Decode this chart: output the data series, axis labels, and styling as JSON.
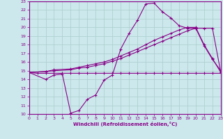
{
  "bg_color": "#cce8ec",
  "grid_color": "#aacccc",
  "line_color": "#880088",
  "xlim": [
    0,
    23
  ],
  "ylim": [
    10,
    23
  ],
  "xticks": [
    0,
    1,
    2,
    3,
    4,
    5,
    6,
    7,
    8,
    9,
    10,
    11,
    12,
    13,
    14,
    15,
    16,
    17,
    18,
    19,
    20,
    21,
    22,
    23
  ],
  "yticks": [
    10,
    11,
    12,
    13,
    14,
    15,
    16,
    17,
    18,
    19,
    20,
    21,
    22,
    23
  ],
  "xlabel": "Windchill (Refroidissement éolien,°C)",
  "line1_x": [
    0,
    1,
    2,
    3,
    4,
    5,
    6,
    7,
    8,
    9,
    10,
    11,
    12,
    13,
    14,
    15,
    16,
    17,
    18,
    19,
    20,
    21,
    22,
    23
  ],
  "line1_y": [
    14.8,
    14.7,
    14.7,
    14.7,
    14.7,
    14.7,
    14.7,
    14.7,
    14.7,
    14.7,
    14.7,
    14.7,
    14.7,
    14.7,
    14.7,
    14.7,
    14.7,
    14.7,
    14.7,
    14.7,
    14.7,
    14.7,
    14.7,
    14.7
  ],
  "line2_x": [
    0,
    2,
    3,
    4,
    5,
    6,
    7,
    8,
    9,
    10,
    11,
    12,
    13,
    14,
    15,
    16,
    17,
    18,
    19,
    20,
    21,
    22,
    23
  ],
  "line2_y": [
    14.8,
    14.0,
    14.5,
    14.6,
    10.1,
    10.4,
    11.7,
    12.2,
    13.9,
    14.5,
    17.5,
    19.3,
    20.8,
    22.7,
    22.8,
    21.8,
    21.1,
    20.2,
    19.9,
    19.9,
    17.9,
    16.3,
    15.0
  ],
  "line3_x": [
    0,
    2,
    3,
    5,
    6,
    7,
    8,
    9,
    10,
    11,
    12,
    13,
    14,
    15,
    16,
    17,
    18,
    19,
    20,
    21,
    22,
    23
  ],
  "line3_y": [
    14.8,
    14.9,
    15.1,
    15.2,
    15.4,
    15.6,
    15.8,
    16.0,
    16.3,
    16.7,
    17.1,
    17.5,
    18.0,
    18.5,
    18.9,
    19.3,
    19.7,
    20.0,
    20.0,
    18.0,
    16.4,
    14.8
  ],
  "line4_x": [
    0,
    2,
    3,
    5,
    6,
    7,
    8,
    9,
    10,
    11,
    12,
    13,
    14,
    15,
    16,
    17,
    18,
    19,
    20,
    21,
    22,
    23
  ],
  "line4_y": [
    14.8,
    14.9,
    15.0,
    15.1,
    15.3,
    15.4,
    15.6,
    15.8,
    16.1,
    16.4,
    16.8,
    17.2,
    17.6,
    18.0,
    18.4,
    18.8,
    19.2,
    19.6,
    19.9,
    19.9,
    19.9,
    14.8
  ]
}
